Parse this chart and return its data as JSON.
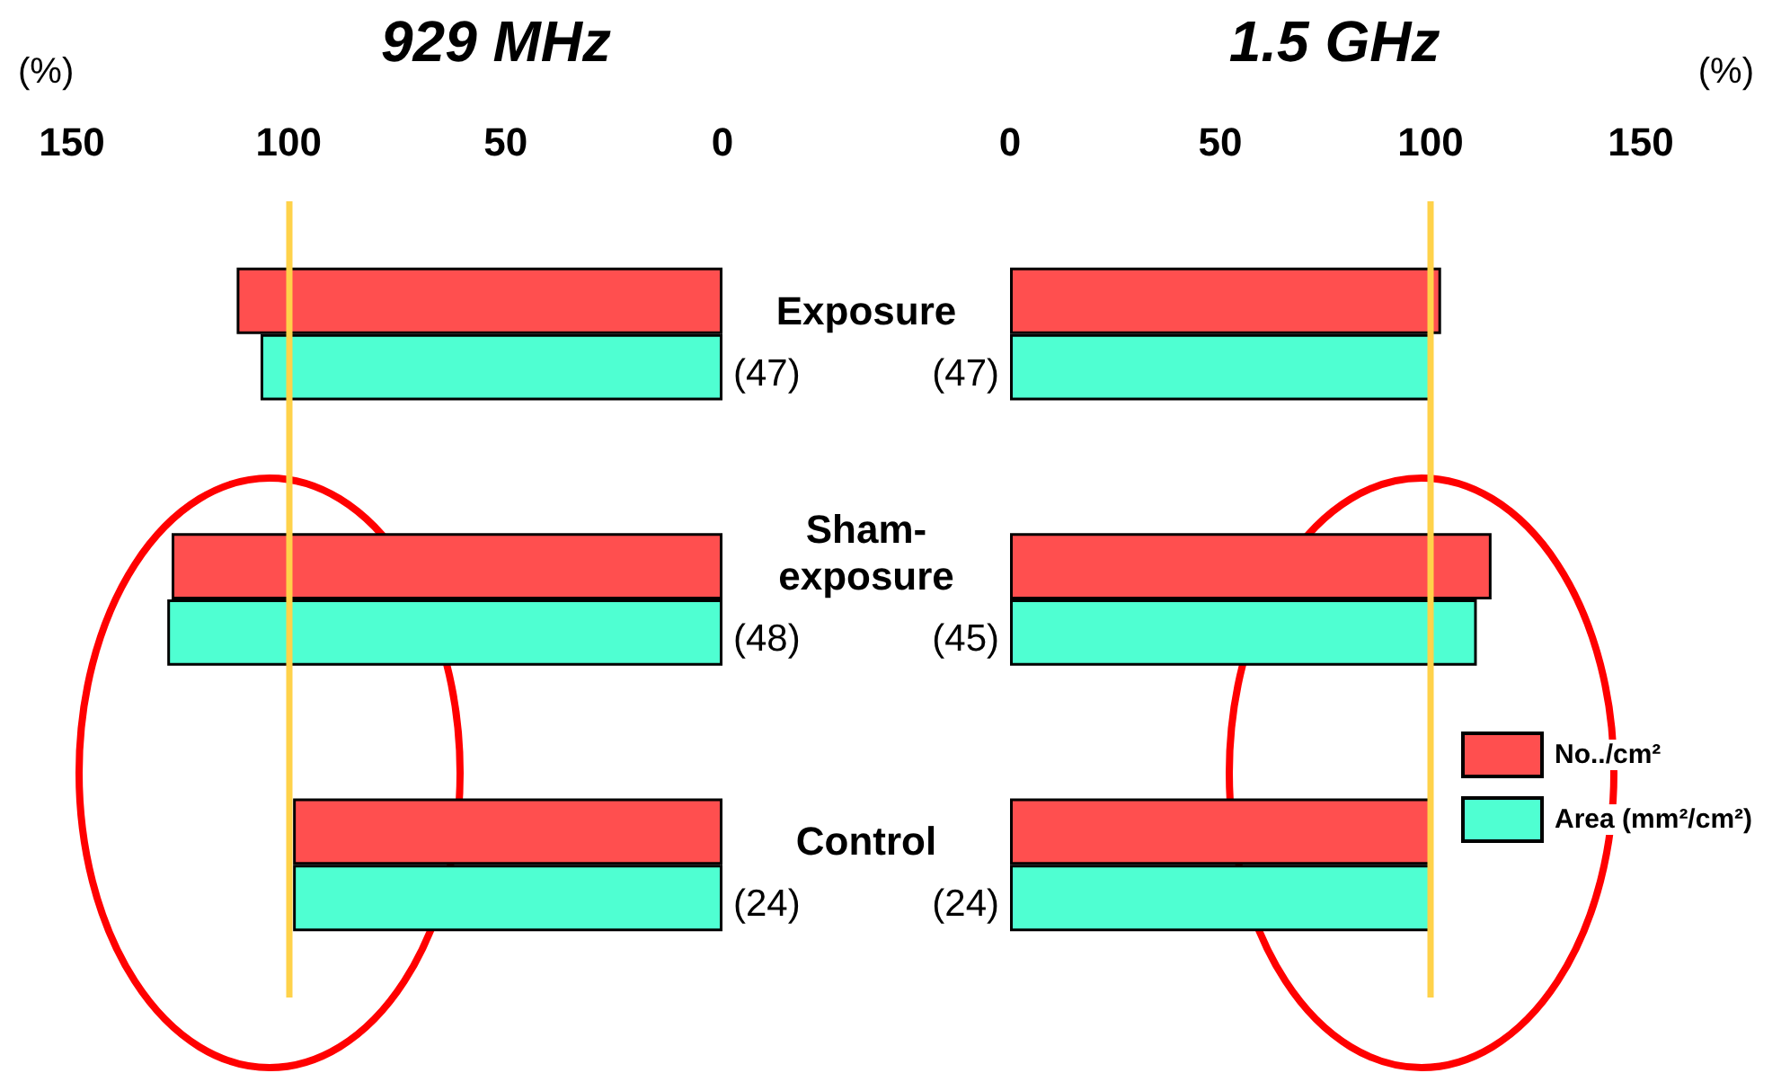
{
  "chart_data": [
    {
      "type": "bar",
      "orientation": "horizontal",
      "title": "929 MHz",
      "xlabel": "(%)",
      "categories": [
        "Exposure",
        "Sham-exposure",
        "Control"
      ],
      "xlim": [
        150,
        0
      ],
      "xticks": [
        150,
        100,
        50,
        0
      ],
      "series": [
        {
          "color": "#ff4f4f",
          "values": [
            112,
            127,
            99
          ]
        },
        {
          "color": "#4fffd2",
          "values": [
            106.5,
            128,
            99
          ]
        }
      ],
      "ref_lines": [
        {
          "axis": "x",
          "value": 100,
          "color": "#ffd24a"
        }
      ],
      "annotations": [
        "(47)",
        "(48)",
        "(24)"
      ]
    },
    {
      "type": "bar",
      "orientation": "horizontal",
      "title": "1.5 GHz",
      "xlabel": "(%)",
      "categories": [
        null,
        null,
        null
      ],
      "xlim": [
        0,
        150
      ],
      "xticks": [
        0,
        50,
        100,
        150
      ],
      "tick_labels": "x",
      "legend": "bottom right",
      "series": [
        {
          "name": "No../cm²",
          "color": "#ff4f4f",
          "values": [
            102.5,
            114.5,
            100
          ]
        },
        {
          "name": "Area (mm²/cm²)",
          "color": "#4fffd2",
          "values": [
            100,
            111,
            100
          ]
        }
      ],
      "ref_lines": [
        {
          "axis": "x",
          "value": 100,
          "color": "#ffd24a"
        }
      ],
      "annotations": [
        "(47)",
        "(45)",
        "(24)"
      ]
    }
  ]
}
